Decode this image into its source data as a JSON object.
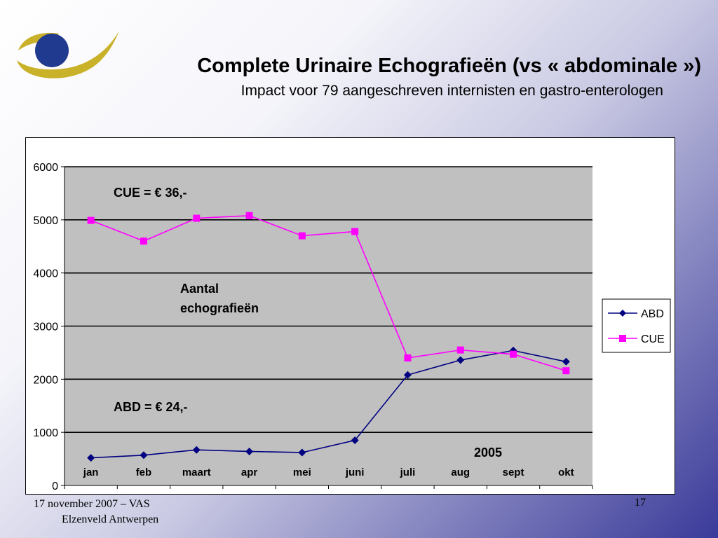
{
  "slide": {
    "title": "Complete Urinaire Echografieën (vs « abdominale »)",
    "subtitle": "Impact voor 79 aangeschreven internisten en gastro-enterologen",
    "footer_line1": "17 november 2007 –  VAS",
    "footer_line2": "Elzenveld  Antwerpen",
    "page_number": "17"
  },
  "colors": {
    "plot_background": "#c0c0c0",
    "abd_series": "#000080",
    "cue_series": "#ff00ff",
    "logo_gold": "#c9b12a",
    "logo_blue": "#1f3a8f"
  },
  "chart_data": {
    "type": "line",
    "categories": [
      "jan",
      "feb",
      "maart",
      "apr",
      "mei",
      "juni",
      "juli",
      "aug",
      "sept",
      "okt"
    ],
    "series": [
      {
        "name": "ABD",
        "marker": "diamond",
        "values": [
          520,
          570,
          670,
          640,
          620,
          850,
          2080,
          2360,
          2540,
          2330
        ]
      },
      {
        "name": "CUE",
        "marker": "square",
        "values": [
          4990,
          4600,
          5030,
          5080,
          4700,
          4780,
          2400,
          2550,
          2470,
          2160
        ]
      }
    ],
    "ylim": [
      0,
      6000
    ],
    "yticks": [
      0,
      1000,
      2000,
      3000,
      4000,
      5000,
      6000
    ],
    "grid": true,
    "legend": "right",
    "annotations": {
      "cue_price": "CUE = € 36,-",
      "abd_price": "ABD = € 24,-",
      "ylabel_line1": "Aantal",
      "ylabel_line2": "echografieën",
      "year": "2005"
    }
  }
}
